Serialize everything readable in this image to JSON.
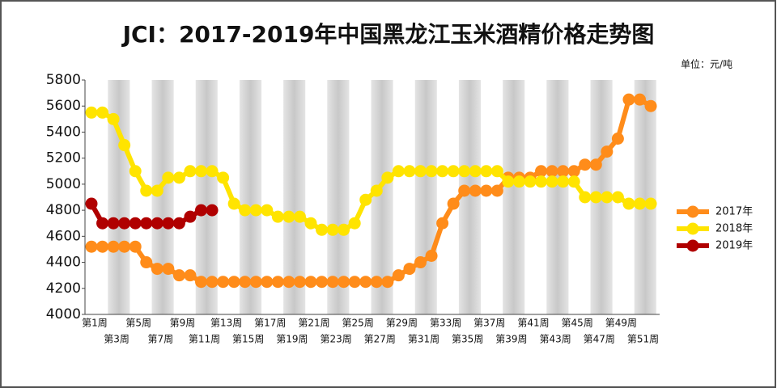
{
  "chart_data": {
    "type": "line",
    "title": "JCI：2017-2019年中国黑龙江玉米酒精价格走势图",
    "unit_label": "单位：元/吨",
    "categories": [
      "第1周",
      null,
      "第3周",
      null,
      "第5周",
      null,
      "第7周",
      null,
      "第9周",
      null,
      "第11周",
      null,
      "第13周",
      null,
      "第15周",
      null,
      "第17周",
      null,
      "第19周",
      null,
      "第21周",
      null,
      "第23周",
      null,
      "第25周",
      null,
      "第27周",
      null,
      "第29周",
      null,
      "第31周",
      null,
      "第33周",
      null,
      "第35周",
      null,
      "第37周",
      null,
      "第39周",
      null,
      "第41周",
      null,
      "第43周",
      null,
      "第45周",
      null,
      "第47周",
      null,
      "第49周",
      null,
      "第51周",
      null
    ],
    "series": [
      {
        "name": "2017年",
        "color": "#ff8c1a",
        "values": [
          4520,
          4520,
          4520,
          4520,
          4520,
          4400,
          4350,
          4350,
          4300,
          4300,
          4250,
          4250,
          4250,
          4250,
          4250,
          4250,
          4250,
          4250,
          4250,
          4250,
          4250,
          4250,
          4250,
          4250,
          4250,
          4250,
          4250,
          4250,
          4300,
          4350,
          4400,
          4450,
          4700,
          4850,
          4950,
          4950,
          4950,
          4950,
          5050,
          5050,
          5050,
          5100,
          5100,
          5100,
          5100,
          5150,
          5150,
          5250,
          5350,
          5650,
          5650,
          5600
        ]
      },
      {
        "name": "2018年",
        "color": "#ffe400",
        "values": [
          5550,
          5550,
          5500,
          5300,
          5100,
          4950,
          4950,
          5050,
          5050,
          5100,
          5100,
          5100,
          5050,
          4850,
          4800,
          4800,
          4800,
          4750,
          4750,
          4750,
          4700,
          4650,
          4650,
          4650,
          4700,
          4880,
          4950,
          5050,
          5100,
          5100,
          5100,
          5100,
          5100,
          5100,
          5100,
          5100,
          5100,
          5100,
          5020,
          5020,
          5020,
          5020,
          5020,
          5020,
          5020,
          4900,
          4900,
          4900,
          4900,
          4850,
          4850,
          4850
        ]
      },
      {
        "name": "2019年",
        "color": "#b00000",
        "values": [
          4850,
          4700,
          4700,
          4700,
          4700,
          4700,
          4700,
          4700,
          4700,
          4750,
          4800,
          4800,
          null,
          null,
          null,
          null,
          null,
          null,
          null,
          null,
          null,
          null,
          null,
          null,
          null,
          null,
          null,
          null,
          null,
          null,
          null,
          null,
          null,
          null,
          null,
          null,
          null,
          null,
          null,
          null,
          null,
          null,
          null,
          null,
          null,
          null,
          null,
          null,
          null,
          null,
          null,
          null
        ]
      }
    ],
    "ylim": [
      4000,
      5800
    ],
    "yticks": [
      4000,
      4200,
      4400,
      4600,
      4800,
      5000,
      5200,
      5400,
      5600,
      5800
    ],
    "legend": "right"
  }
}
